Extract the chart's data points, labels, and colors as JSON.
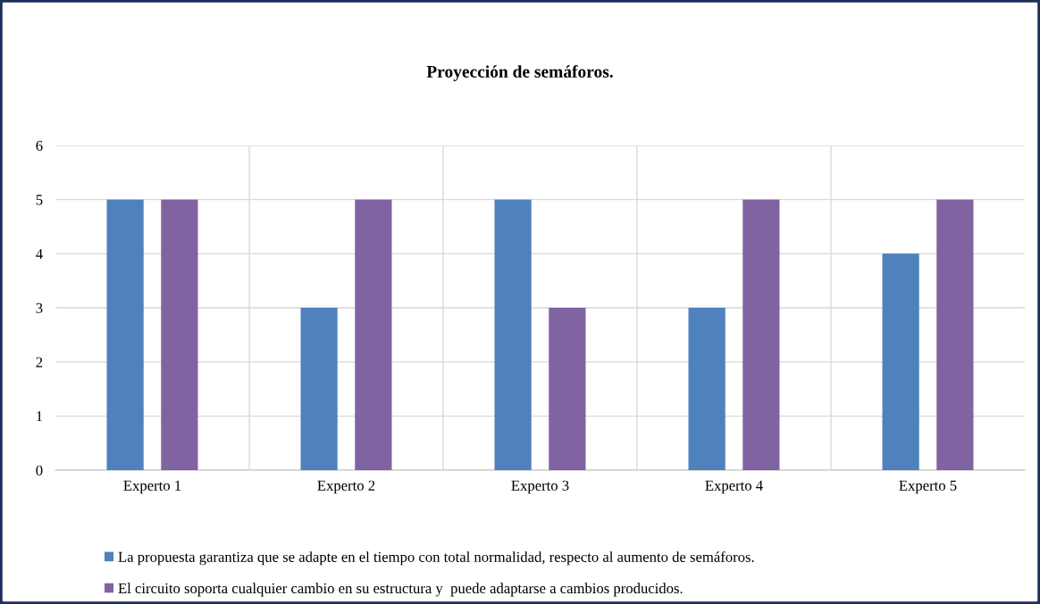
{
  "chart_data": {
    "type": "bar",
    "title": "Proyección de semáforos.",
    "categories": [
      "Experto 1",
      "Experto 2",
      "Experto 3",
      "Experto 4",
      "Experto 5"
    ],
    "series": [
      {
        "name": "La propuesta garantiza que se adapte en el tiempo con total normalidad, respecto al aumento de semáforos.",
        "color": "#4f81bd",
        "values": [
          5,
          3,
          5,
          3,
          4
        ]
      },
      {
        "name": "El circuito soporta cualquier cambio en su estructura y  puede adaptarse a cambios producidos.",
        "color": "#8064a2",
        "values": [
          5,
          5,
          3,
          5,
          5
        ]
      }
    ],
    "ylim": [
      0,
      6
    ],
    "yticks": [
      0,
      1,
      2,
      3,
      4,
      5,
      6
    ],
    "grid": true,
    "legend": "bottom"
  }
}
